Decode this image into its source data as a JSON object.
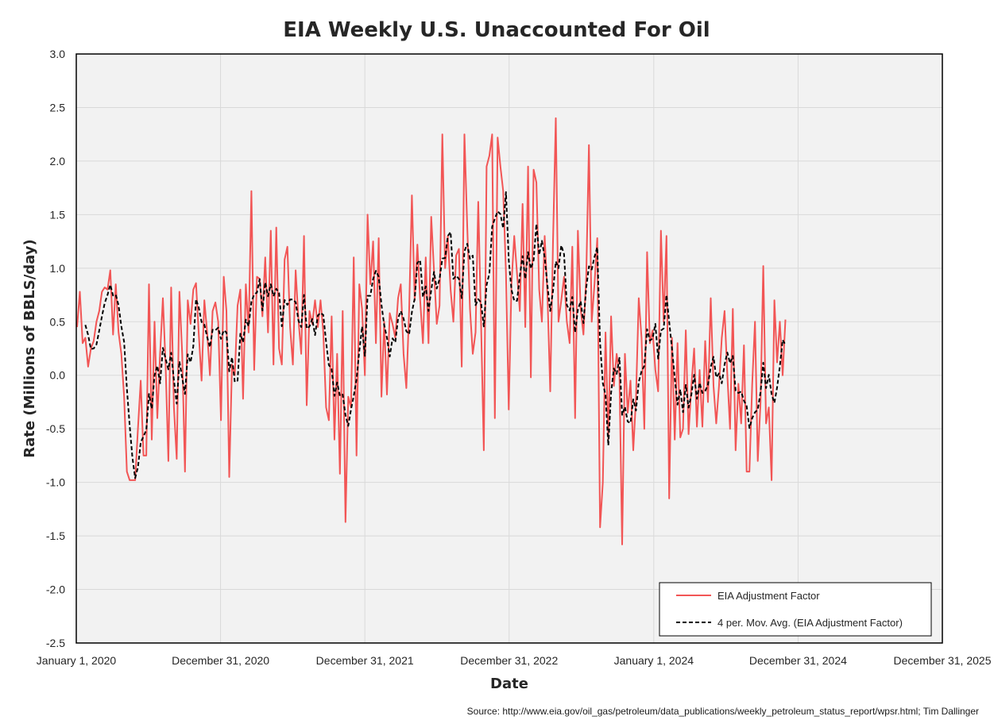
{
  "chart_data": {
    "type": "line",
    "title": "EIA Weekly U.S. Unaccounted For Oil",
    "xlabel": "Date",
    "ylabel": "Rate (Millions of BBLS/day)",
    "source": "Source: http://www.eia.gov/oil_gas/petroleum/data_publications/weekly_petroleum_status_report/wpsr.html; Tim Dallinger",
    "xlim": [
      "2020-01-01",
      "2025-12-31"
    ],
    "ylim": [
      -2.5,
      3.0
    ],
    "x_ticks": [
      "January 1, 2020",
      "December 31, 2020",
      "December 31, 2021",
      "December 31, 2022",
      "January 1, 2024",
      "December 31, 2024",
      "December 31, 2025"
    ],
    "y_ticks": [
      "3.0",
      "2.5",
      "2.0",
      "1.5",
      "1.0",
      "0.5",
      "0.0",
      "-0.5",
      "-1.0",
      "-1.5",
      "-2.0",
      "-2.5"
    ],
    "y_tick_values": [
      3.0,
      2.5,
      2.0,
      1.5,
      1.0,
      0.5,
      0.0,
      -0.5,
      -1.0,
      -1.5,
      -2.0,
      -2.5
    ],
    "grid": true,
    "legend_position": "bottom-right",
    "colors": {
      "adjustment": "#f25555",
      "moving_avg": "#000000",
      "plot_bg": "#f2f2f2"
    },
    "series": [
      {
        "name": "EIA Adjustment Factor",
        "start_date": "2020-01-03",
        "interval_days": 7,
        "values": [
          0.45,
          0.78,
          0.3,
          0.35,
          0.08,
          0.25,
          0.32,
          0.5,
          0.6,
          0.78,
          0.82,
          0.8,
          0.98,
          0.38,
          0.85,
          0.4,
          0.2,
          -0.2,
          -0.9,
          -0.98,
          -0.98,
          -0.98,
          -0.5,
          -0.05,
          -0.75,
          -0.75,
          0.85,
          -0.6,
          0.5,
          -0.4,
          0.2,
          0.72,
          0.1,
          -0.8,
          0.82,
          -0.3,
          -0.78,
          0.78,
          0.2,
          -0.9,
          0.7,
          0.48,
          0.8,
          0.86,
          0.38,
          -0.05,
          0.7,
          0.4,
          0.0,
          0.6,
          0.68,
          0.5,
          -0.42,
          0.92,
          0.6,
          -0.95,
          0.1,
          0.0,
          0.65,
          0.8,
          -0.22,
          0.85,
          0.4,
          1.72,
          0.05,
          0.92,
          0.9,
          0.55,
          1.1,
          0.4,
          1.35,
          0.1,
          1.38,
          0.25,
          0.1,
          1.08,
          1.2,
          0.45,
          0.1,
          0.98,
          0.52,
          0.2,
          1.3,
          -0.28,
          0.6,
          0.48,
          0.7,
          0.45,
          0.7,
          0.4,
          -0.3,
          -0.42,
          0.55,
          -0.6,
          0.2,
          -0.92,
          0.6,
          -1.37,
          -0.2,
          -0.3,
          1.1,
          -0.75,
          0.85,
          0.62,
          0.0,
          1.5,
          0.85,
          1.25,
          0.3,
          1.28,
          -0.2,
          0.5,
          -0.18,
          0.58,
          0.48,
          0.35,
          0.72,
          0.85,
          0.2,
          -0.12,
          0.6,
          1.68,
          0.7,
          1.22,
          0.7,
          0.3,
          1.1,
          0.3,
          1.48,
          0.98,
          0.48,
          0.65,
          2.25,
          1.0,
          1.3,
          0.8,
          0.5,
          1.12,
          1.18,
          0.08,
          2.25,
          1.4,
          0.62,
          0.2,
          0.4,
          1.62,
          0.5,
          -0.7,
          1.95,
          2.05,
          2.25,
          -0.4,
          2.22,
          1.95,
          1.72,
          0.95,
          -0.32,
          0.85,
          1.3,
          0.95,
          0.6,
          1.6,
          0.45,
          1.95,
          -0.02,
          1.92,
          1.8,
          0.8,
          0.5,
          1.3,
          0.75,
          -0.15,
          1.25,
          2.4,
          0.5,
          0.7,
          0.92,
          0.5,
          0.3,
          1.2,
          -0.4,
          1.35,
          0.62,
          0.38,
          0.92,
          2.15,
          0.5,
          0.85,
          1.28,
          -1.42,
          -1.0,
          0.4,
          -0.6,
          0.55,
          -0.1,
          0.2,
          0.0,
          -1.58,
          0.2,
          -0.35,
          -0.05,
          -0.7,
          -0.22,
          0.72,
          0.35,
          -0.5,
          1.15,
          0.3,
          0.42,
          0.05,
          -0.15,
          1.35,
          0.5,
          1.3,
          -1.15,
          0.35,
          -0.6,
          0.3,
          -0.58,
          -0.5,
          0.42,
          -0.55,
          -0.1,
          0.25,
          -0.48,
          0.05,
          -0.48,
          0.32,
          -0.25,
          0.72,
          -0.1,
          -0.45,
          -0.1,
          0.35,
          0.6,
          0.0,
          -0.5,
          0.62,
          -0.7,
          -0.08,
          -0.45,
          0.28,
          -0.9,
          -0.9,
          -0.08,
          0.5,
          -0.8,
          -0.25,
          1.02,
          -0.45,
          -0.3,
          -0.98,
          0.7,
          0.12,
          0.5,
          0.0,
          0.52
        ]
      },
      {
        "name": "4 per. Mov. Avg. (EIA Adjustment Factor)",
        "derived_from": "EIA Adjustment Factor",
        "window": 4
      }
    ]
  }
}
